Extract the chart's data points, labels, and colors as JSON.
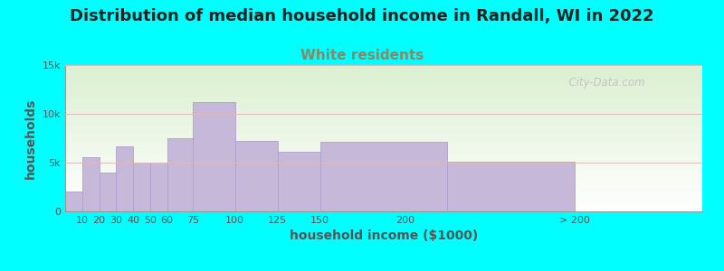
{
  "title": "Distribution of median household income in Randall, WI in 2022",
  "subtitle": "White residents",
  "xlabel": "household income ($1000)",
  "ylabel": "households",
  "background_outer": "#00FFFF",
  "bar_color": "#c5b8d8",
  "bar_edge_color": "#b0a0cc",
  "grid_color": "#ddbbbb",
  "subtitle_color": "#888866",
  "title_color": "#222222",
  "tick_color": "#555555",
  "watermark": "  City-Data.com",
  "title_fontsize": 13,
  "subtitle_fontsize": 11,
  "axis_label_fontsize": 10,
  "tick_fontsize": 8,
  "ylim": [
    0,
    15000
  ],
  "yticks": [
    0,
    5000,
    10000,
    15000
  ],
  "ytick_labels": [
    "0",
    "5k",
    "10k",
    "15k"
  ],
  "bar_lefts": [
    0,
    10,
    20,
    30,
    40,
    50,
    60,
    75,
    100,
    125,
    150,
    225
  ],
  "bar_widths": [
    10,
    10,
    10,
    10,
    10,
    10,
    15,
    25,
    25,
    25,
    75,
    75
  ],
  "bar_heights": [
    2000,
    5600,
    4000,
    6700,
    5000,
    5000,
    7500,
    11200,
    7200,
    6100,
    7100,
    5100
  ],
  "xtick_positions": [
    10,
    20,
    30,
    40,
    50,
    60,
    75,
    100,
    125,
    150,
    200,
    300
  ],
  "xtick_labels": [
    "10",
    "20",
    "30",
    "40",
    "50",
    "60",
    "75",
    "100",
    "125",
    "150",
    "200",
    "> 200"
  ],
  "xlim": [
    0,
    375
  ]
}
